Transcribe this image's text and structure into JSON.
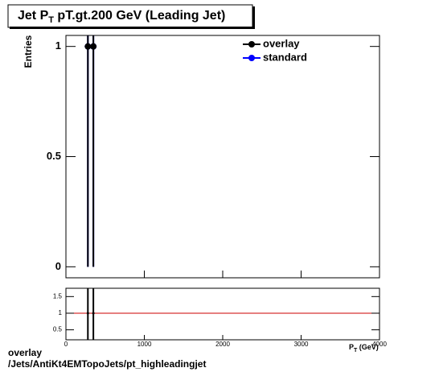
{
  "chart_data": {
    "type": "errorbar",
    "title": {
      "main": "Jet P",
      "sub": "T",
      "rest": " pT.gt.200 GeV (Leading Jet)"
    },
    "y_label": "Entries",
    "x_label": {
      "main": "P",
      "sub": "T",
      "rest": " (GeV)"
    },
    "x": [
      280,
      350
    ],
    "xlim": [
      0,
      4000
    ],
    "xticks": [
      0,
      1000,
      2000,
      3000,
      4000
    ],
    "ylim": [
      -0.05,
      1.05
    ],
    "yticks": [
      0,
      0.5,
      1
    ],
    "series": [
      {
        "name": "overlay",
        "color": "#000000",
        "values": [
          1,
          1
        ],
        "errors": [
          1,
          1
        ]
      },
      {
        "name": "standard",
        "color": "#0000ff",
        "values": [
          1,
          1
        ],
        "errors": [
          1,
          1
        ]
      }
    ],
    "ratio": {
      "values": [
        1,
        1
      ],
      "errors": [
        1.4,
        1.4
      ],
      "ylim": [
        0.2,
        1.75
      ],
      "yticks": [
        0.5,
        1,
        1.5
      ],
      "reference": 1,
      "reference_color": "#cc0000"
    },
    "footer": {
      "label": "overlay",
      "path": "/Jets/AntiKt4EMTopoJets/pt_highleadingjet"
    }
  }
}
